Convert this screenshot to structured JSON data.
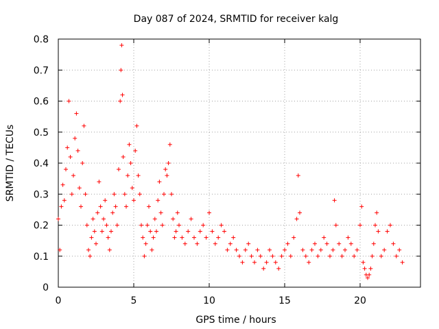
{
  "chart_data": {
    "type": "scatter",
    "title": "Day 087 of 2024, SRMTID for receiver kalg",
    "xlabel": "GPS time / hours",
    "ylabel": "SRMTID / TECUs",
    "xlim": [
      0,
      24
    ],
    "ylim": [
      0,
      0.8
    ],
    "xticks": [
      0,
      5,
      10,
      15,
      20
    ],
    "xtick_labels": [
      "0",
      "5",
      "10",
      "15",
      "20"
    ],
    "yticks": [
      0,
      0.1,
      0.2,
      0.3,
      0.4,
      0.5,
      0.6,
      0.7,
      0.8
    ],
    "ytick_labels": [
      "0",
      "0.1",
      "0.2",
      "0.3",
      "0.4",
      "0.5",
      "0.6",
      "0.7",
      "0.8"
    ],
    "grid": true,
    "marker": "plus",
    "color": "#ff0000",
    "series": [
      {
        "name": "SRMTID",
        "x": [
          0.0,
          0.1,
          0.2,
          0.3,
          0.4,
          0.5,
          0.6,
          0.7,
          0.8,
          0.9,
          1.0,
          1.1,
          1.2,
          1.3,
          1.4,
          1.5,
          1.6,
          1.7,
          1.8,
          1.9,
          2.0,
          2.1,
          2.2,
          2.3,
          2.4,
          2.5,
          2.6,
          2.7,
          2.8,
          2.9,
          3.0,
          3.1,
          3.2,
          3.3,
          3.4,
          3.5,
          3.6,
          3.7,
          3.8,
          3.9,
          4.0,
          4.1,
          4.15,
          4.2,
          4.25,
          4.3,
          4.4,
          4.5,
          4.6,
          4.7,
          4.8,
          4.9,
          5.0,
          5.1,
          5.2,
          5.3,
          5.4,
          5.5,
          5.6,
          5.7,
          5.8,
          5.9,
          6.0,
          6.1,
          6.2,
          6.3,
          6.4,
          6.5,
          6.6,
          6.7,
          6.8,
          6.9,
          7.0,
          7.1,
          7.2,
          7.3,
          7.4,
          7.5,
          7.6,
          7.7,
          7.8,
          7.9,
          8.0,
          8.2,
          8.4,
          8.6,
          8.8,
          9.0,
          9.2,
          9.4,
          9.6,
          9.8,
          10.0,
          10.2,
          10.4,
          10.6,
          10.8,
          11.0,
          11.2,
          11.4,
          11.6,
          11.8,
          12.0,
          12.2,
          12.4,
          12.6,
          12.8,
          13.0,
          13.2,
          13.4,
          13.6,
          13.8,
          14.0,
          14.2,
          14.4,
          14.6,
          14.8,
          15.0,
          15.2,
          15.4,
          15.6,
          15.8,
          15.9,
          16.0,
          16.2,
          16.4,
          16.6,
          16.8,
          17.0,
          17.2,
          17.4,
          17.6,
          17.8,
          18.0,
          18.2,
          18.3,
          18.4,
          18.6,
          18.8,
          19.0,
          19.2,
          19.4,
          19.6,
          19.8,
          20.0,
          20.1,
          20.2,
          20.3,
          20.4,
          20.5,
          20.6,
          20.7,
          20.8,
          20.9,
          21.0,
          21.1,
          21.2,
          21.4,
          21.6,
          21.8,
          22.0,
          22.2,
          22.4,
          22.6,
          22.8
        ],
        "y": [
          0.22,
          0.12,
          0.26,
          0.33,
          0.28,
          0.38,
          0.45,
          0.6,
          0.42,
          0.3,
          0.36,
          0.48,
          0.56,
          0.44,
          0.32,
          0.26,
          0.4,
          0.52,
          0.3,
          0.2,
          0.12,
          0.1,
          0.16,
          0.22,
          0.18,
          0.14,
          0.24,
          0.34,
          0.26,
          0.18,
          0.22,
          0.28,
          0.2,
          0.16,
          0.12,
          0.18,
          0.24,
          0.3,
          0.26,
          0.2,
          0.38,
          0.6,
          0.7,
          0.78,
          0.62,
          0.42,
          0.3,
          0.26,
          0.36,
          0.46,
          0.4,
          0.32,
          0.28,
          0.44,
          0.52,
          0.36,
          0.3,
          0.2,
          0.16,
          0.1,
          0.14,
          0.2,
          0.26,
          0.18,
          0.12,
          0.16,
          0.22,
          0.18,
          0.28,
          0.34,
          0.24,
          0.2,
          0.3,
          0.38,
          0.36,
          0.4,
          0.46,
          0.3,
          0.22,
          0.16,
          0.18,
          0.24,
          0.2,
          0.16,
          0.14,
          0.18,
          0.22,
          0.16,
          0.14,
          0.18,
          0.2,
          0.16,
          0.24,
          0.18,
          0.14,
          0.16,
          0.2,
          0.18,
          0.12,
          0.14,
          0.16,
          0.12,
          0.1,
          0.08,
          0.12,
          0.14,
          0.1,
          0.08,
          0.12,
          0.1,
          0.06,
          0.08,
          0.12,
          0.1,
          0.08,
          0.06,
          0.1,
          0.12,
          0.14,
          0.1,
          0.16,
          0.22,
          0.36,
          0.24,
          0.12,
          0.1,
          0.08,
          0.12,
          0.14,
          0.1,
          0.12,
          0.16,
          0.14,
          0.1,
          0.12,
          0.28,
          0.2,
          0.14,
          0.1,
          0.12,
          0.16,
          0.14,
          0.1,
          0.12,
          0.2,
          0.26,
          0.08,
          0.06,
          0.04,
          0.03,
          0.04,
          0.06,
          0.1,
          0.14,
          0.2,
          0.24,
          0.18,
          0.1,
          0.12,
          0.18,
          0.2,
          0.14,
          0.1,
          0.12,
          0.08
        ]
      }
    ]
  }
}
